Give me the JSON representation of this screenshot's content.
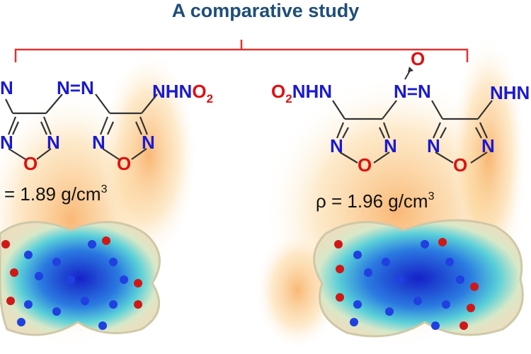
{
  "title": "A comparative study",
  "colors": {
    "bracket": "#e0332f",
    "nitrogen": "#1a1ad0",
    "oxygen": "#e01010",
    "title": "#1f4e79",
    "flame": "#f7b04a"
  },
  "left_compound": {
    "labels": {
      "n_cut": "N",
      "azo": "N=N",
      "nhno2_prefix": "NHN",
      "nhno2_o": "O",
      "sub2": "2",
      "ring1_n1": "N",
      "ring1_n2": "N",
      "ring1_o": "O",
      "ring2_n1": "N",
      "ring2_n2": "N",
      "ring2_o": "O"
    },
    "density": "= 1.89 g/cm",
    "density_sup": "3"
  },
  "right_compound": {
    "labels": {
      "o2": "O",
      "sub2": "2",
      "nhn": "NHN",
      "n_oxide_o": "O",
      "azo": "N=N",
      "nhn_cut": "NHN",
      "ring1_n1": "N",
      "ring1_n2": "N",
      "ring1_o": "O",
      "ring2_n1": "N",
      "ring2_n2": "N",
      "ring2_o": "O"
    },
    "density": "ρ = 1.96 g/cm",
    "density_sup": "3"
  }
}
